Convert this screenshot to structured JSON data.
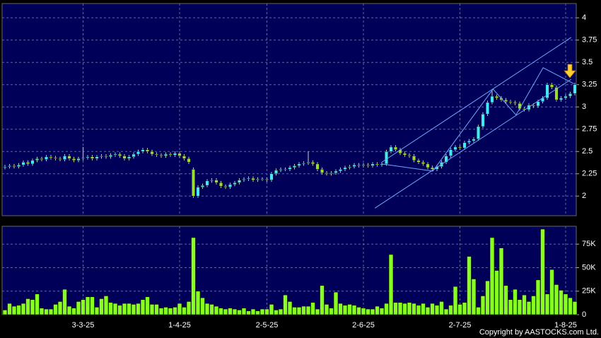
{
  "chart_data": {
    "type": "candlestick",
    "categories": [
      null,
      null,
      null,
      null,
      null,
      null,
      null,
      null,
      null,
      null,
      null,
      null,
      null,
      null,
      null,
      null,
      null,
      "3-3-25",
      null,
      null,
      null,
      null,
      null,
      null,
      null,
      null,
      null,
      null,
      null,
      null,
      null,
      null,
      null,
      null,
      null,
      null,
      null,
      null,
      "1-4-25",
      null,
      null,
      null,
      null,
      null,
      null,
      null,
      null,
      null,
      null,
      null,
      null,
      null,
      null,
      null,
      null,
      null,
      null,
      "2-5-25",
      null,
      null,
      null,
      null,
      null,
      null,
      null,
      null,
      null,
      null,
      null,
      null,
      null,
      null,
      null,
      null,
      null,
      null,
      null,
      null,
      "2-6-25",
      null,
      null,
      null,
      null,
      null,
      null,
      null,
      null,
      null,
      null,
      null,
      null,
      null,
      null,
      null,
      null,
      null,
      null,
      null,
      null,
      "2-7-25",
      null,
      null,
      null,
      null,
      null,
      null,
      null,
      null,
      null,
      null,
      null,
      null,
      null,
      null,
      null,
      null,
      null,
      null,
      null,
      null,
      null,
      null,
      "1-8-25",
      null,
      null
    ],
    "open": [
      2.32,
      2.33,
      2.34,
      2.33,
      2.35,
      2.38,
      2.36,
      2.4,
      2.42,
      2.41,
      2.44,
      2.43,
      2.42,
      2.41,
      2.45,
      2.42,
      2.4,
      2.42,
      2.43,
      2.44,
      2.42,
      2.44,
      2.45,
      2.44,
      2.46,
      2.47,
      2.45,
      2.42,
      2.44,
      2.47,
      2.5,
      2.52,
      2.5,
      2.47,
      2.46,
      2.45,
      2.47,
      2.46,
      2.48,
      2.45,
      2.42,
      2.3,
      2.0,
      2.1,
      2.12,
      2.17,
      2.18,
      2.15,
      2.11,
      2.1,
      2.13,
      2.15,
      2.18,
      2.19,
      2.2,
      2.18,
      2.19,
      2.19,
      2.18,
      2.25,
      2.29,
      2.3,
      2.3,
      2.32,
      2.34,
      2.36,
      2.37,
      2.38,
      2.36,
      2.3,
      2.26,
      2.25,
      2.26,
      2.28,
      2.3,
      2.32,
      2.33,
      2.35,
      2.34,
      2.35,
      2.34,
      2.36,
      2.35,
      2.36,
      2.5,
      2.55,
      2.52,
      2.48,
      2.46,
      2.45,
      2.4,
      2.38,
      2.36,
      2.32,
      2.3,
      2.33,
      2.38,
      2.45,
      2.52,
      2.55,
      2.54,
      2.6,
      2.62,
      2.64,
      2.78,
      2.92,
      3.05,
      3.12,
      3.1,
      3.08,
      3.06,
      3.05,
      3.04,
      2.98,
      2.97,
      3.02,
      3.01,
      3.06,
      3.1,
      3.25,
      3.22,
      3.08,
      3.1,
      3.12,
      3.15
    ],
    "high": [
      2.35,
      2.36,
      2.36,
      2.37,
      2.4,
      2.4,
      2.42,
      2.44,
      2.44,
      2.46,
      2.46,
      2.45,
      2.44,
      2.47,
      2.47,
      2.44,
      2.44,
      2.55,
      2.46,
      2.46,
      2.46,
      2.47,
      2.47,
      2.48,
      2.49,
      2.49,
      2.47,
      2.46,
      2.49,
      2.52,
      2.54,
      2.54,
      2.52,
      2.49,
      2.48,
      2.49,
      2.49,
      2.5,
      2.5,
      2.47,
      2.44,
      2.32,
      2.12,
      2.14,
      2.19,
      2.2,
      2.2,
      2.17,
      2.13,
      2.15,
      2.17,
      2.2,
      2.21,
      2.22,
      2.22,
      2.21,
      2.21,
      2.21,
      2.27,
      2.31,
      2.32,
      2.32,
      2.34,
      2.36,
      2.38,
      2.39,
      2.5,
      2.4,
      2.38,
      2.32,
      2.28,
      2.28,
      2.3,
      2.32,
      2.34,
      2.35,
      2.37,
      2.37,
      2.37,
      2.37,
      2.38,
      2.38,
      2.38,
      2.52,
      2.57,
      2.57,
      2.54,
      2.5,
      2.48,
      2.47,
      2.42,
      2.4,
      2.38,
      2.34,
      2.35,
      2.4,
      2.47,
      2.54,
      2.57,
      2.57,
      2.62,
      2.64,
      2.66,
      2.8,
      2.94,
      3.07,
      3.18,
      3.14,
      3.12,
      3.1,
      3.08,
      3.07,
      3.06,
      3.0,
      3.04,
      3.04,
      3.08,
      3.12,
      3.27,
      3.27,
      3.24,
      3.12,
      3.14,
      3.17,
      3.27
    ],
    "low": [
      2.3,
      2.31,
      2.31,
      2.31,
      2.33,
      2.34,
      2.34,
      2.38,
      2.39,
      2.39,
      2.41,
      2.4,
      2.39,
      2.39,
      2.4,
      2.38,
      2.38,
      2.4,
      2.41,
      2.4,
      2.4,
      2.42,
      2.42,
      2.42,
      2.44,
      2.43,
      2.4,
      2.4,
      2.42,
      2.45,
      2.48,
      2.48,
      2.45,
      2.44,
      2.43,
      2.43,
      2.44,
      2.44,
      2.43,
      2.4,
      2.36,
      1.98,
      1.98,
      2.08,
      2.1,
      2.15,
      2.13,
      2.09,
      2.08,
      2.08,
      2.11,
      2.13,
      2.16,
      2.17,
      2.16,
      2.16,
      2.17,
      2.16,
      2.16,
      2.23,
      2.27,
      2.28,
      2.28,
      2.3,
      2.32,
      2.34,
      2.35,
      2.34,
      2.28,
      2.24,
      2.23,
      2.23,
      2.24,
      2.26,
      2.28,
      2.3,
      2.31,
      2.32,
      2.32,
      2.32,
      2.32,
      2.33,
      2.33,
      2.34,
      2.48,
      2.5,
      2.46,
      2.44,
      2.43,
      2.38,
      2.36,
      2.34,
      2.3,
      2.28,
      2.28,
      2.31,
      2.36,
      2.43,
      2.5,
      2.52,
      2.52,
      2.58,
      2.6,
      2.62,
      2.76,
      2.9,
      3.03,
      3.08,
      3.06,
      3.04,
      3.03,
      3.02,
      2.96,
      2.95,
      2.95,
      2.99,
      2.99,
      3.04,
      3.08,
      3.2,
      3.06,
      3.06,
      3.08,
      3.1,
      3.13
    ],
    "close": [
      2.33,
      2.34,
      2.33,
      2.35,
      2.38,
      2.36,
      2.4,
      2.42,
      2.41,
      2.44,
      2.43,
      2.42,
      2.41,
      2.45,
      2.42,
      2.4,
      2.42,
      2.43,
      2.44,
      2.42,
      2.44,
      2.45,
      2.44,
      2.46,
      2.47,
      2.45,
      2.42,
      2.44,
      2.47,
      2.5,
      2.52,
      2.5,
      2.47,
      2.46,
      2.45,
      2.47,
      2.46,
      2.48,
      2.45,
      2.42,
      2.38,
      2.0,
      2.1,
      2.12,
      2.17,
      2.18,
      2.15,
      2.11,
      2.1,
      2.13,
      2.15,
      2.18,
      2.19,
      2.2,
      2.18,
      2.19,
      2.19,
      2.18,
      2.25,
      2.29,
      2.3,
      2.3,
      2.32,
      2.34,
      2.36,
      2.37,
      2.38,
      2.36,
      2.3,
      2.26,
      2.25,
      2.26,
      2.28,
      2.3,
      2.32,
      2.33,
      2.35,
      2.34,
      2.35,
      2.34,
      2.36,
      2.35,
      2.36,
      2.5,
      2.55,
      2.52,
      2.48,
      2.46,
      2.45,
      2.4,
      2.38,
      2.36,
      2.32,
      2.3,
      2.33,
      2.38,
      2.45,
      2.52,
      2.55,
      2.54,
      2.6,
      2.62,
      2.64,
      2.78,
      2.92,
      3.05,
      3.12,
      3.1,
      3.08,
      3.06,
      3.05,
      3.04,
      2.98,
      2.97,
      3.02,
      3.01,
      3.06,
      3.1,
      3.25,
      3.22,
      3.08,
      3.1,
      3.12,
      3.15,
      3.25
    ],
    "volume": [
      5000,
      12000,
      9000,
      10000,
      12000,
      17000,
      16000,
      22000,
      7000,
      6000,
      6000,
      11000,
      14000,
      27000,
      9000,
      7000,
      14000,
      16000,
      19000,
      19000,
      8000,
      17000,
      20000,
      13000,
      12000,
      10000,
      12000,
      12000,
      11000,
      12000,
      16000,
      19000,
      11000,
      11000,
      7000,
      8000,
      7000,
      8000,
      12000,
      8000,
      14000,
      82000,
      25000,
      18000,
      12000,
      11000,
      9000,
      7000,
      6000,
      7000,
      6000,
      5000,
      7000,
      4000,
      6000,
      4000,
      6000,
      6000,
      11000,
      5000,
      6000,
      21000,
      14000,
      8000,
      8000,
      9000,
      9000,
      13000,
      6000,
      31000,
      11000,
      7000,
      24000,
      12000,
      10000,
      11000,
      10000,
      8000,
      7000,
      6000,
      6000,
      9000,
      7000,
      12000,
      64000,
      13000,
      13000,
      12000,
      13000,
      12000,
      10000,
      12000,
      8000,
      12000,
      10000,
      14000,
      6000,
      10000,
      30000,
      11000,
      13000,
      62000,
      38000,
      8000,
      20000,
      36000,
      82000,
      47000,
      71000,
      31000,
      16000,
      27000,
      16000,
      21000,
      14000,
      20000,
      37000,
      91000,
      22000,
      48000,
      32000,
      26000,
      22000,
      18000,
      14000
    ],
    "up_color": "#44e8f8",
    "down_color": "#99dd33",
    "volume_color": "#88ff22",
    "trend_color": "#6fa8ff",
    "ylim": [
      1.78,
      4.16
    ],
    "yticks": [
      2,
      2.25,
      2.5,
      2.75,
      3,
      3.25,
      3.5,
      3.75,
      4
    ],
    "volume_ylim": [
      0,
      94000
    ],
    "volume_yticks": [
      0,
      {
        "value": 25000,
        "label": "25K"
      },
      {
        "value": 50000,
        "label": "50K"
      },
      {
        "value": 75000,
        "label": "75K"
      }
    ],
    "grid": true,
    "trend_lines": [
      [
        [
          80.5,
          1.865
        ],
        [
          123.2,
          3.31
        ]
      ],
      [
        [
          82,
          2.38
        ],
        [
          123.2,
          3.78
        ]
      ],
      [
        [
          82,
          2.36
        ],
        [
          93.1,
          2.28
        ],
        [
          106.2,
          3.2
        ],
        [
          111.2,
          2.91
        ],
        [
          117.1,
          3.44
        ],
        [
          123.8,
          3.26
        ]
      ]
    ],
    "copyright": "Copyright by AASTOCKS.com Ltd."
  }
}
